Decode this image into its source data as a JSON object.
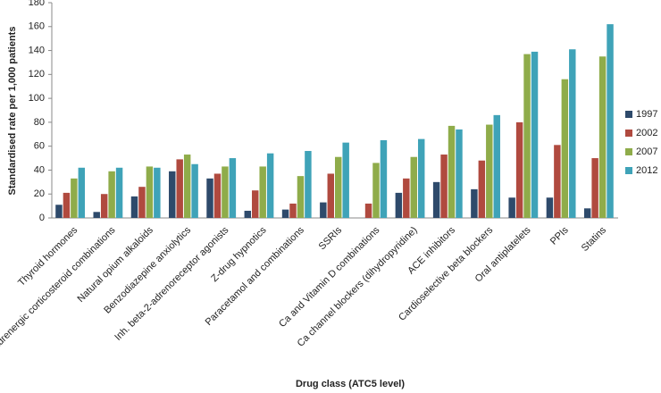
{
  "chart_data": {
    "type": "bar",
    "categories": [
      "Thyroid hormones",
      "Inh. adrenergic corticosteroid combinations",
      "Natural opium alkaloids",
      "Benzodiazepine anxiolytics",
      "Inh. beta-2-adrenoreceptor agonists",
      "Z-drug hypnotics",
      "Paracetamol and combinations",
      "SSRIs",
      "Ca and Vitamin D combinations",
      "Ca channel blockers (dihydropyridine)",
      "ACE inhibitors",
      "Cardioselective beta blockers",
      "Oral antiplatelets",
      "PPIs",
      "Statins"
    ],
    "series": [
      {
        "name": "1997",
        "color": "#2e4a6b",
        "values": [
          11,
          5,
          18,
          39,
          33,
          6,
          7,
          13,
          0,
          21,
          30,
          24,
          17,
          17,
          8
        ]
      },
      {
        "name": "2002",
        "color": "#b04a3f",
        "values": [
          21,
          20,
          26,
          49,
          37,
          23,
          12,
          37,
          12,
          33,
          53,
          48,
          80,
          61,
          50
        ]
      },
      {
        "name": "2007",
        "color": "#8fac4a",
        "values": [
          33,
          39,
          43,
          53,
          43,
          43,
          35,
          51,
          46,
          51,
          77,
          78,
          137,
          116,
          135
        ]
      },
      {
        "name": "2012",
        "color": "#3fa3b8",
        "values": [
          42,
          42,
          42,
          45,
          50,
          54,
          56,
          63,
          65,
          66,
          74,
          86,
          139,
          141,
          162
        ]
      }
    ],
    "y_label": "Standardised rate per 1,000 patients",
    "x_label": "Drug class (ATC5 level)",
    "ylim": [
      0,
      180
    ],
    "yticks": [
      0,
      20,
      40,
      60,
      80,
      100,
      120,
      140,
      160,
      180
    ],
    "grid": false,
    "legend": "right"
  }
}
